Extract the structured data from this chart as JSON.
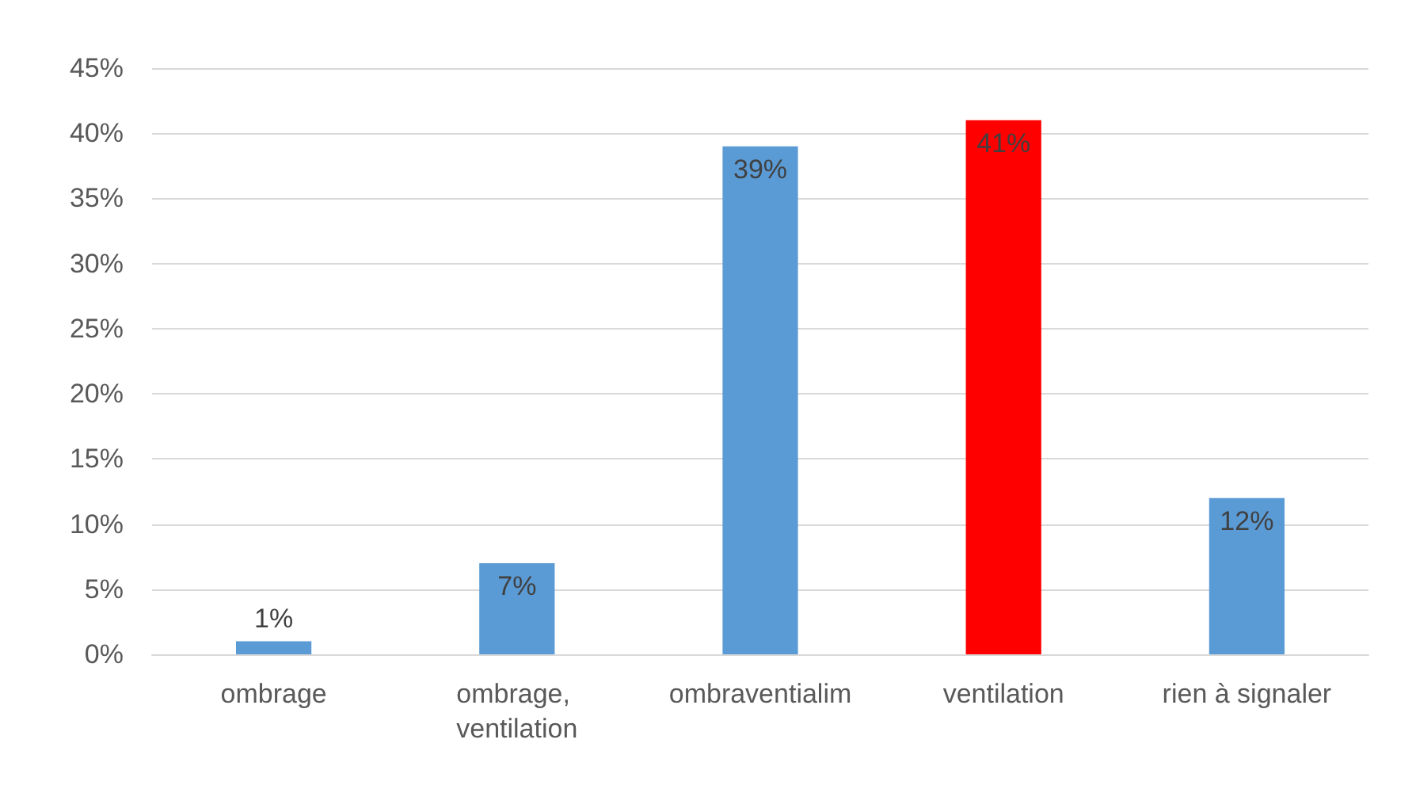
{
  "chart_data": {
    "type": "bar",
    "categories": [
      "ombrage",
      "ombrage, ventilation",
      "ombraventialim",
      "ventilation",
      "rien à signaler"
    ],
    "values": [
      1,
      7,
      39,
      41,
      12
    ],
    "colors": [
      "#5b9bd5",
      "#5b9bd5",
      "#5b9bd5",
      "#ff0000",
      "#5b9bd5"
    ],
    "value_labels": [
      "1%",
      "7%",
      "39%",
      "41%",
      "12%"
    ],
    "ylim": [
      0,
      45
    ],
    "yticks": [
      {
        "value": 0,
        "label": "0%"
      },
      {
        "value": 5,
        "label": "5%"
      },
      {
        "value": 10,
        "label": "10%"
      },
      {
        "value": 15,
        "label": "15%"
      },
      {
        "value": 20,
        "label": "20%"
      },
      {
        "value": 25,
        "label": "25%"
      },
      {
        "value": 30,
        "label": "30%"
      },
      {
        "value": 35,
        "label": "35%"
      },
      {
        "value": 40,
        "label": "40%"
      },
      {
        "value": 45,
        "label": "45%"
      }
    ],
    "grid": "y"
  }
}
